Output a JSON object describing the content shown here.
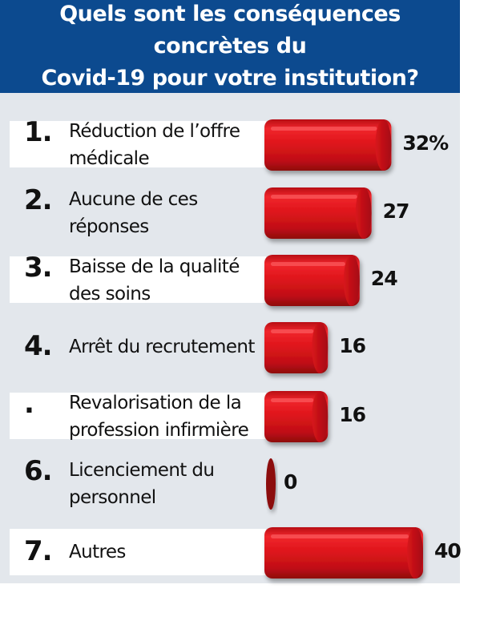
{
  "title": "Quels sont les conséquences concrètes du Covid-19 pour votre institution?",
  "title_lines": [
    "Quels sont les conséquences concrètes du",
    "Covid-19 pour votre institution?"
  ],
  "colors": {
    "banner": "#0c4a8f",
    "background": "#e3e7ec",
    "bar": "#d8141b",
    "bar_dark": "#8c0a0e"
  },
  "chart_data": {
    "type": "bar",
    "orientation": "horizontal",
    "title": "Quels sont les conséquences concrètes du Covid-19 pour votre institution?",
    "unit": "%",
    "categories": [
      "Réduction de l’offre médicale",
      "Aucune de ces réponses",
      "Baisse de la qualité des soins",
      "Arrêt du recrutement",
      "Revalorisation de la profession infirmière",
      "Licenciement du personnel",
      "Autres"
    ],
    "values": [
      32,
      27,
      24,
      16,
      16,
      0,
      40
    ],
    "xlim": [
      0,
      40
    ],
    "grid": false,
    "legend": "none"
  },
  "rows": [
    {
      "num": "1.",
      "label_lines": [
        "Réduction de l’offre",
        "médicale"
      ],
      "value_label": "32%",
      "value": 32
    },
    {
      "num": "2.",
      "label_lines": [
        "Aucune de ces",
        "réponses"
      ],
      "value_label": "27",
      "value": 27
    },
    {
      "num": "3.",
      "label_lines": [
        "Baisse de la qualité",
        "des soins"
      ],
      "value_label": "24",
      "value": 24
    },
    {
      "num": "4.",
      "label_lines": [
        "Arrêt du recrutement"
      ],
      "value_label": "16",
      "value": 16
    },
    {
      "num": ".",
      "label_lines": [
        "Revalorisation de la",
        "profession infirmière"
      ],
      "value_label": "16",
      "value": 16
    },
    {
      "num": "6.",
      "label_lines": [
        "Licenciement du",
        "personnel"
      ],
      "value_label": "0",
      "value": 0
    },
    {
      "num": "7.",
      "label_lines": [
        "Autres"
      ],
      "value_label": "40",
      "value": 40
    }
  ]
}
